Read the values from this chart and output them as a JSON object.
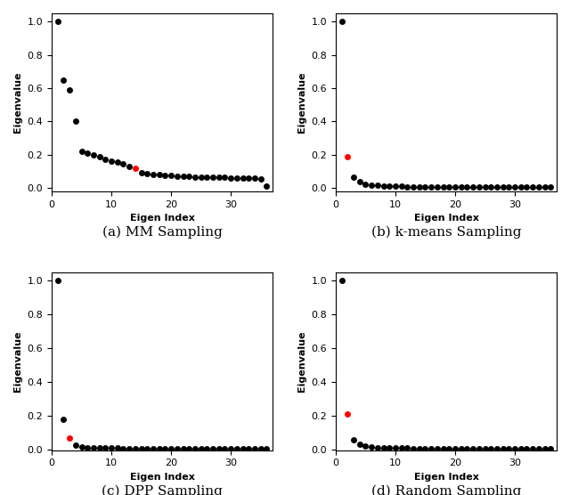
{
  "subplots": [
    {
      "label": "(a) MM Sampling",
      "x": [
        1,
        2,
        3,
        4,
        5,
        6,
        7,
        8,
        9,
        10,
        11,
        12,
        13,
        14,
        15,
        16,
        17,
        18,
        19,
        20,
        21,
        22,
        23,
        24,
        25,
        26,
        27,
        28,
        29,
        30,
        31,
        32,
        33,
        34,
        35,
        36
      ],
      "y": [
        1.0,
        0.65,
        0.59,
        0.4,
        0.22,
        0.21,
        0.2,
        0.19,
        0.17,
        0.16,
        0.155,
        0.148,
        0.13,
        0.12,
        0.09,
        0.085,
        0.082,
        0.08,
        0.078,
        0.075,
        0.073,
        0.072,
        0.07,
        0.068,
        0.067,
        0.066,
        0.065,
        0.064,
        0.063,
        0.062,
        0.061,
        0.06,
        0.059,
        0.058,
        0.055,
        0.01
      ],
      "red_index": 13,
      "xlim": [
        0,
        37
      ],
      "ylim": [
        -0.02,
        1.05
      ],
      "yticks": [
        0.0,
        0.2,
        0.4,
        0.6,
        0.8,
        1.0
      ],
      "xticks": [
        0,
        10,
        20,
        30
      ]
    },
    {
      "label": "(b) k-means Sampling",
      "x": [
        1,
        2,
        3,
        4,
        5,
        6,
        7,
        8,
        9,
        10,
        11,
        12,
        13,
        14,
        15,
        16,
        17,
        18,
        19,
        20,
        21,
        22,
        23,
        24,
        25,
        26,
        27,
        28,
        29,
        30,
        31,
        32,
        33,
        34,
        35,
        36
      ],
      "y": [
        1.0,
        0.19,
        0.065,
        0.04,
        0.025,
        0.018,
        0.015,
        0.013,
        0.012,
        0.011,
        0.01,
        0.009,
        0.009,
        0.008,
        0.008,
        0.007,
        0.007,
        0.007,
        0.006,
        0.006,
        0.006,
        0.006,
        0.005,
        0.005,
        0.005,
        0.005,
        0.005,
        0.005,
        0.005,
        0.005,
        0.005,
        0.004,
        0.004,
        0.004,
        0.004,
        0.004
      ],
      "red_index": 1,
      "xlim": [
        0,
        37
      ],
      "ylim": [
        -0.02,
        1.05
      ],
      "yticks": [
        0.0,
        0.2,
        0.4,
        0.6,
        0.8,
        1.0
      ],
      "xticks": [
        0,
        10,
        20,
        30
      ]
    },
    {
      "label": "(c) DPP Sampling",
      "x": [
        1,
        2,
        3,
        4,
        5,
        6,
        7,
        8,
        9,
        10,
        11,
        12,
        13,
        14,
        15,
        16,
        17,
        18,
        19,
        20,
        21,
        22,
        23,
        24,
        25,
        26,
        27,
        28,
        29,
        30,
        31,
        32,
        33,
        34,
        35,
        36
      ],
      "y": [
        1.0,
        0.18,
        0.065,
        0.025,
        0.015,
        0.012,
        0.01,
        0.009,
        0.008,
        0.007,
        0.007,
        0.006,
        0.006,
        0.006,
        0.005,
        0.005,
        0.005,
        0.005,
        0.004,
        0.004,
        0.004,
        0.004,
        0.004,
        0.004,
        0.004,
        0.003,
        0.003,
        0.003,
        0.003,
        0.003,
        0.003,
        0.003,
        0.003,
        0.003,
        0.003,
        0.003
      ],
      "red_index": 2,
      "xlim": [
        0,
        37
      ],
      "ylim": [
        -0.005,
        1.05
      ],
      "yticks": [
        0.0,
        0.2,
        0.4,
        0.6,
        0.8,
        1.0
      ],
      "xticks": [
        0,
        10,
        20,
        30
      ]
    },
    {
      "label": "(d) Random Sampling",
      "x": [
        1,
        2,
        3,
        4,
        5,
        6,
        7,
        8,
        9,
        10,
        11,
        12,
        13,
        14,
        15,
        16,
        17,
        18,
        19,
        20,
        21,
        22,
        23,
        24,
        25,
        26,
        27,
        28,
        29,
        30,
        31,
        32,
        33,
        34,
        35,
        36
      ],
      "y": [
        1.0,
        0.21,
        0.055,
        0.03,
        0.02,
        0.015,
        0.012,
        0.01,
        0.009,
        0.008,
        0.007,
        0.007,
        0.006,
        0.006,
        0.005,
        0.005,
        0.005,
        0.005,
        0.004,
        0.004,
        0.004,
        0.004,
        0.004,
        0.004,
        0.004,
        0.003,
        0.003,
        0.003,
        0.003,
        0.003,
        0.003,
        0.003,
        0.003,
        0.003,
        0.003,
        0.003
      ],
      "red_index": 1,
      "xlim": [
        0,
        37
      ],
      "ylim": [
        -0.005,
        1.05
      ],
      "yticks": [
        0.0,
        0.2,
        0.4,
        0.6,
        0.8,
        1.0
      ],
      "xticks": [
        0,
        10,
        20,
        30
      ]
    }
  ],
  "xlabel": "Eigen Index",
  "ylabel": "Eigenvalue",
  "black_color": "#000000",
  "red_color": "#ff0000",
  "marker_size": 5,
  "figsize": [
    6.4,
    5.56
  ],
  "dpi": 100,
  "caption_fontsize": 11,
  "axis_label_fontsize": 8,
  "tick_fontsize": 8
}
